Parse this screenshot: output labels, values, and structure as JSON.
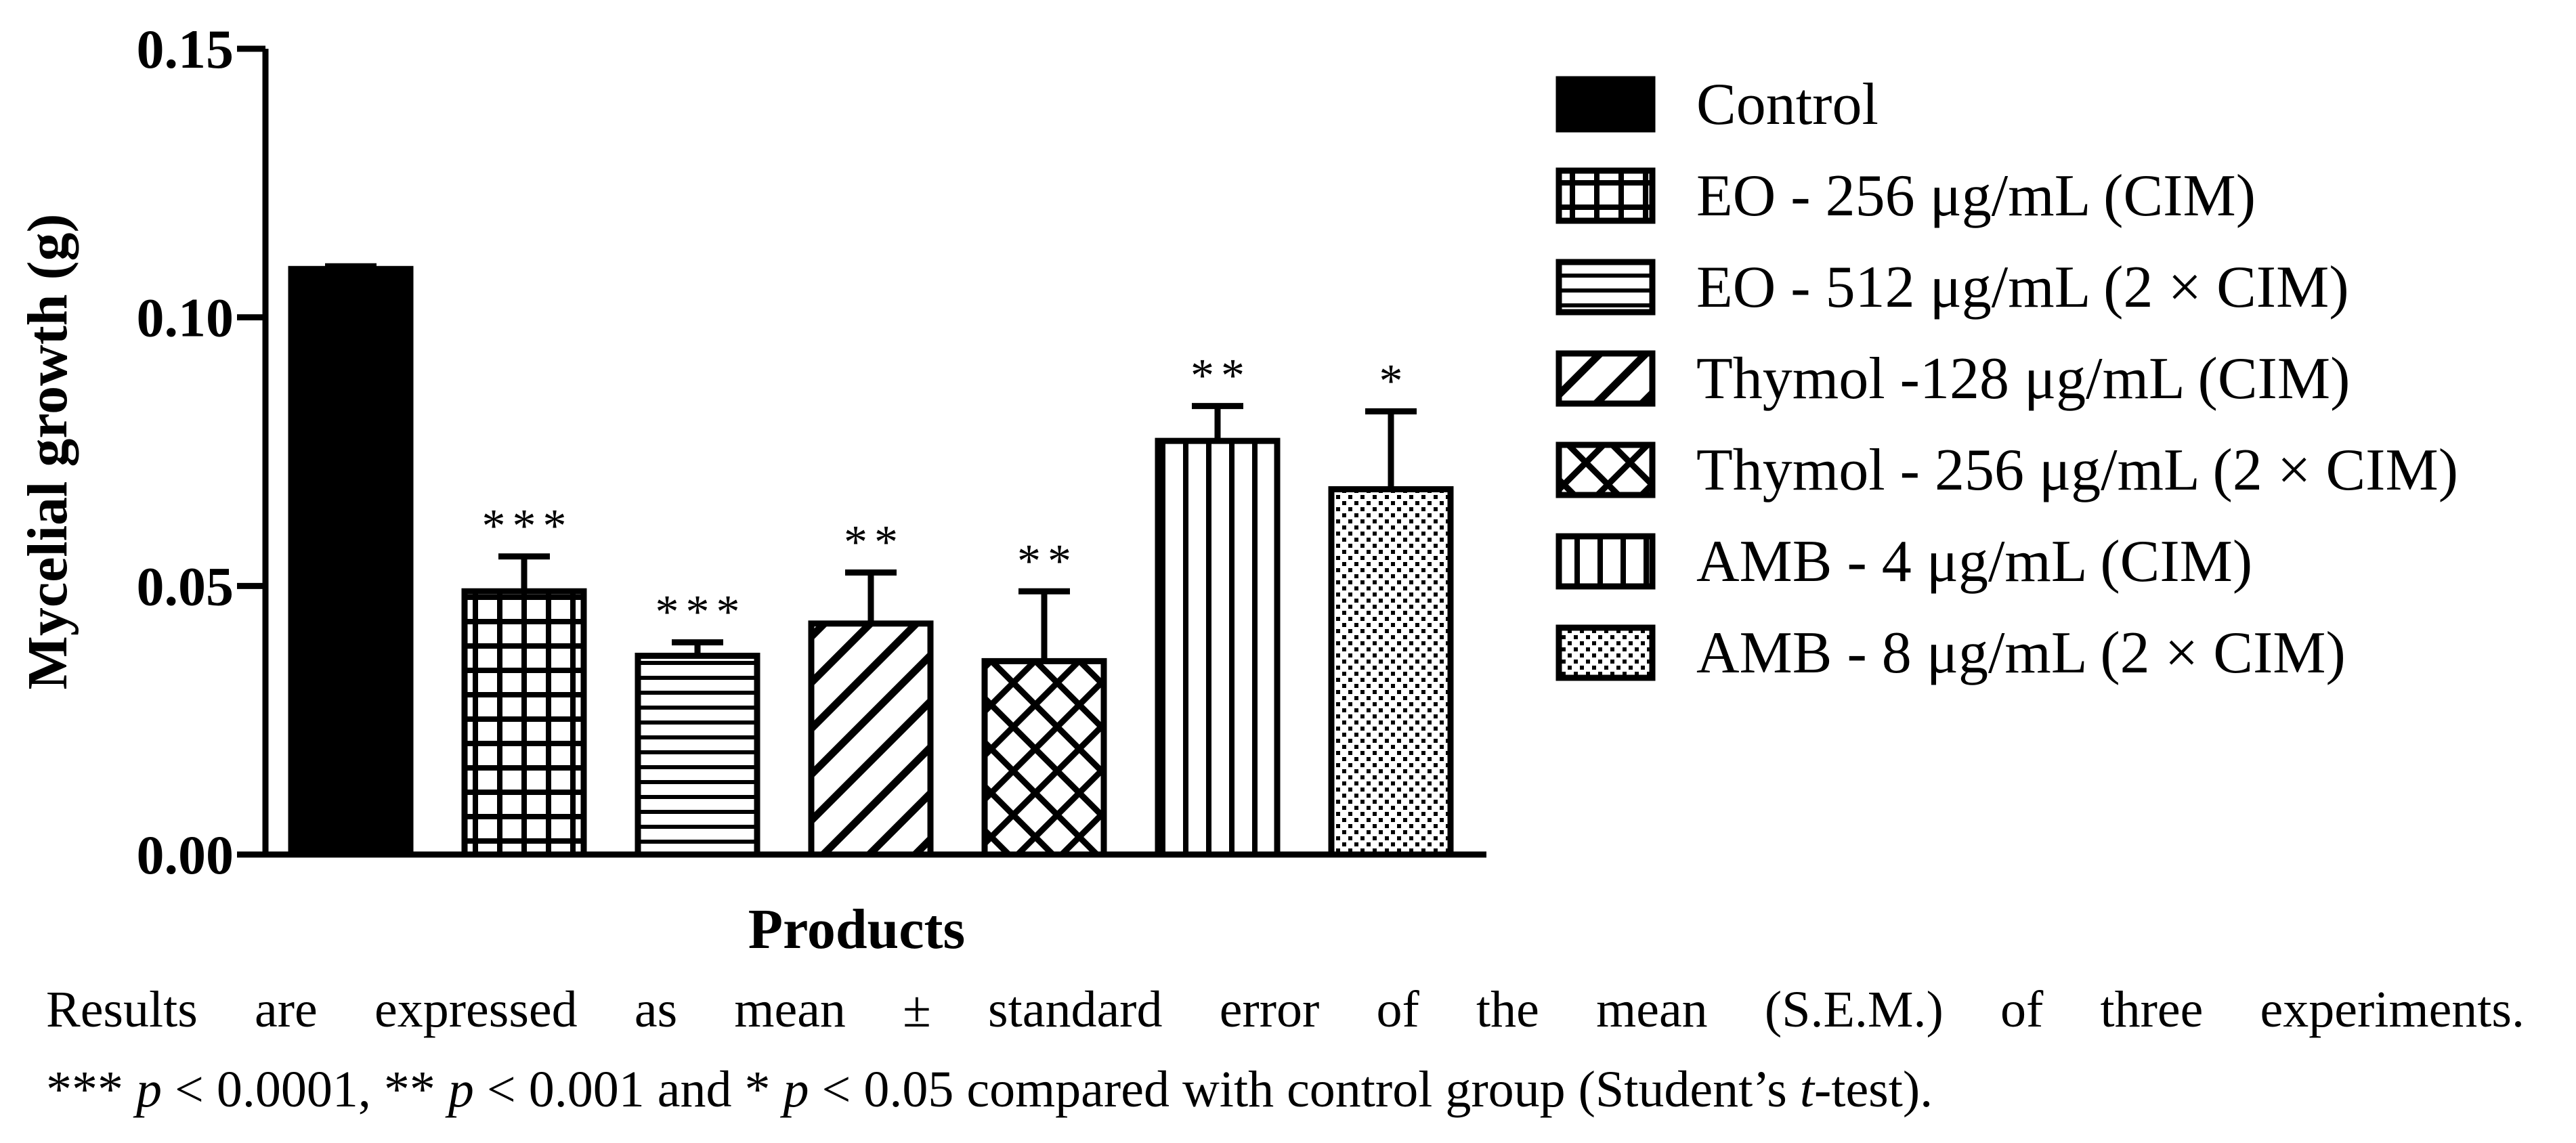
{
  "chart_data": {
    "type": "bar",
    "title": "",
    "xlabel": "Products",
    "ylabel": "Mycelial growth (g)",
    "ylim": [
      0,
      0.15
    ],
    "yticks": [
      0.0,
      0.05,
      0.1,
      0.15
    ],
    "ytick_labels": [
      "0.00",
      "0.05",
      "0.10",
      "0.15"
    ],
    "grid": false,
    "legend_position": "right",
    "categories": [
      "Control",
      "EO - 256 μg/mL (CIM)",
      "EO - 512 μg/mL (2 × CIM)",
      "Thymol -128 μg/mL (CIM)",
      "Thymol - 256 μg/mL (2 × CIM)",
      "AMB - 4 μg/mL (CIM)",
      "AMB - 8 μg/mL (2 × CIM)"
    ],
    "values": [
      0.109,
      0.049,
      0.037,
      0.043,
      0.036,
      0.077,
      0.068
    ],
    "errors": [
      0.0005,
      0.0065,
      0.0025,
      0.0095,
      0.013,
      0.0065,
      0.0145
    ],
    "significance": [
      "",
      "***",
      "***",
      "**",
      "**",
      "**",
      "*"
    ],
    "patterns": [
      "solid",
      "grid",
      "horizontal",
      "diagonal",
      "crosshatch",
      "vertical",
      "dots"
    ]
  },
  "caption": {
    "line1": "Results are expressed as mean ± standard error of the mean (S.E.M.) of three experiments.",
    "line2_a": "*** ",
    "line2_p1": "p",
    "line2_b": " < 0.0001, ** ",
    "line2_p2": "p",
    "line2_c": " < 0.001 and * ",
    "line2_p3": "p",
    "line2_d": " < 0.05 compared with control group (Student’s ",
    "line2_t": "t",
    "line2_e": "-test)."
  }
}
